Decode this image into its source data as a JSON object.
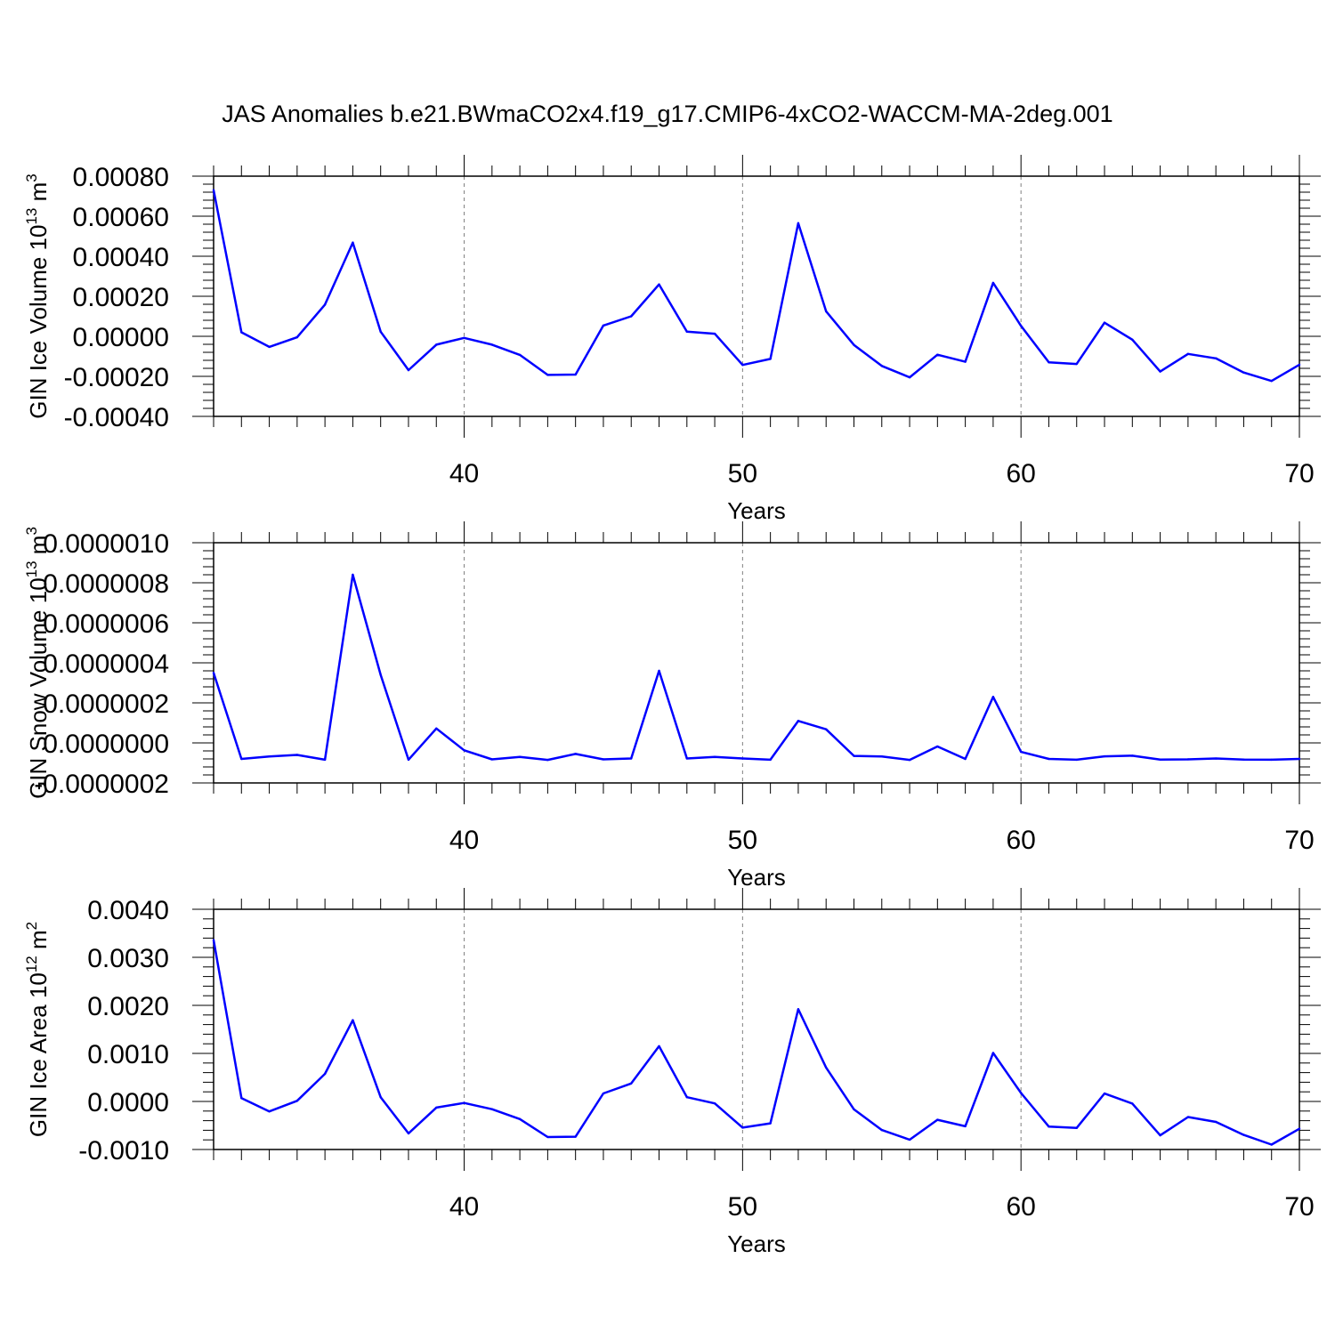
{
  "title": "JAS Anomalies b.e21.BWmaCO2x4.f19_g17.CMIP6-4xCO2-WACCM-MA-2deg.001",
  "line_color": "#0000ff",
  "chart_data": [
    {
      "type": "line",
      "xlabel": "Years",
      "ylabel": {
        "text": "GIN Ice Volume 10",
        "sup": "13",
        "unit": " m",
        "unit_sup": "3"
      },
      "xlim": [
        31,
        70
      ],
      "ylim": [
        -0.0004,
        0.0008
      ],
      "x_ticks": [
        "40",
        "50",
        "60",
        "70"
      ],
      "y_ticks": [
        "0.00080",
        "0.00060",
        "0.00040",
        "0.00020",
        "0.00000",
        "-0.00020",
        "-0.00040"
      ],
      "x": [
        31,
        32,
        33,
        34,
        35,
        36,
        37,
        38,
        39,
        40,
        41,
        42,
        43,
        44,
        45,
        46,
        47,
        48,
        49,
        50,
        51,
        52,
        53,
        54,
        55,
        56,
        57,
        58,
        59,
        60,
        61,
        62,
        63,
        64,
        65,
        66,
        67,
        68,
        69,
        70
      ],
      "y": [
        0.00073,
        2e-05,
        -5.3e-05,
        -5e-06,
        0.000158,
        0.000468,
        2.3e-05,
        -0.000169,
        -4.2e-05,
        -8e-06,
        -4.2e-05,
        -9.3e-05,
        -0.000193,
        -0.000191,
        5.4e-05,
        0.0001,
        0.000259,
        2.3e-05,
        1.3e-05,
        -0.000143,
        -0.000113,
        0.000565,
        0.000125,
        -4.3e-05,
        -0.000148,
        -0.000205,
        -9.2e-05,
        -0.000127,
        0.000267,
        5.2e-05,
        -0.00013,
        -0.000138,
        6.8e-05,
        -1.7e-05,
        -0.000176,
        -8.8e-05,
        -0.00011,
        -0.000181,
        -0.000223,
        -0.000142
      ]
    },
    {
      "type": "line",
      "xlabel": "Years",
      "ylabel": {
        "text": "GIN Snow Volume 10",
        "sup": "13",
        "unit": " m",
        "unit_sup": "3"
      },
      "xlim": [
        31,
        70
      ],
      "ylim": [
        -2e-07,
        1e-06
      ],
      "x_ticks": [
        "40",
        "50",
        "60",
        "70"
      ],
      "y_ticks": [
        "0.0000010",
        "0.0000008",
        "0.0000006",
        "0.0000004",
        "0.0000002",
        "0.0000000",
        "-0.0000002"
      ],
      "x": [
        31,
        32,
        33,
        34,
        35,
        36,
        37,
        38,
        39,
        40,
        41,
        42,
        43,
        44,
        45,
        46,
        47,
        48,
        49,
        50,
        51,
        52,
        53,
        54,
        55,
        56,
        57,
        58,
        59,
        60,
        61,
        62,
        63,
        64,
        65,
        66,
        67,
        68,
        69,
        70
      ],
      "y": [
        3.5e-07,
        -8e-08,
        -6.8e-08,
        -6e-08,
        -8.4e-08,
        8.4e-07,
        3.4e-07,
        -8.4e-08,
        7.2e-08,
        -3.7e-08,
        -8.2e-08,
        -7e-08,
        -8.5e-08,
        -5.5e-08,
        -8.2e-08,
        -7.8e-08,
        3.6e-07,
        -7.8e-08,
        -7e-08,
        -7.8e-08,
        -8.4e-08,
        1.1e-07,
        6.8e-08,
        -6.5e-08,
        -6.8e-08,
        -8.5e-08,
        -1.8e-08,
        -8e-08,
        2.3e-07,
        -4.5e-08,
        -8e-08,
        -8.4e-08,
        -6.7e-08,
        -6.4e-08,
        -8.3e-08,
        -8.2e-08,
        -7.8e-08,
        -8.3e-08,
        -8.4e-08,
        -8e-08
      ]
    },
    {
      "type": "line",
      "xlabel": "Years",
      "ylabel": {
        "text": "GIN Ice Area 10",
        "sup": "12",
        "unit": " m",
        "unit_sup": "2"
      },
      "xlim": [
        31,
        70
      ],
      "ylim": [
        -0.001,
        0.004
      ],
      "x_ticks": [
        "40",
        "50",
        "60",
        "70"
      ],
      "y_ticks": [
        "0.0040",
        "0.0030",
        "0.0020",
        "0.0010",
        "0.0000",
        "-0.0010"
      ],
      "x": [
        31,
        32,
        33,
        34,
        35,
        36,
        37,
        38,
        39,
        40,
        41,
        42,
        43,
        44,
        45,
        46,
        47,
        48,
        49,
        50,
        51,
        52,
        53,
        54,
        55,
        56,
        57,
        58,
        59,
        60,
        61,
        62,
        63,
        64,
        65,
        66,
        67,
        68,
        69,
        70
      ],
      "y": [
        0.00336,
        7e-05,
        -0.000207,
        1.3e-05,
        0.000575,
        0.00169,
        8.8e-05,
        -0.000665,
        -0.000128,
        -3.2e-05,
        -0.000162,
        -0.000367,
        -0.00074,
        -0.000733,
        0.000166,
        0.000374,
        0.00115,
        8.8e-05,
        -4.1e-05,
        -0.000545,
        -0.000455,
        0.00192,
        0.000705,
        -0.000165,
        -0.000595,
        -0.000797,
        -0.000382,
        -0.000517,
        0.00101,
        0.000175,
        -0.000525,
        -0.000552,
        0.000165,
        -4.5e-05,
        -0.000705,
        -0.000325,
        -0.000425,
        -0.000696,
        -0.000898,
        -0.000568
      ]
    }
  ]
}
